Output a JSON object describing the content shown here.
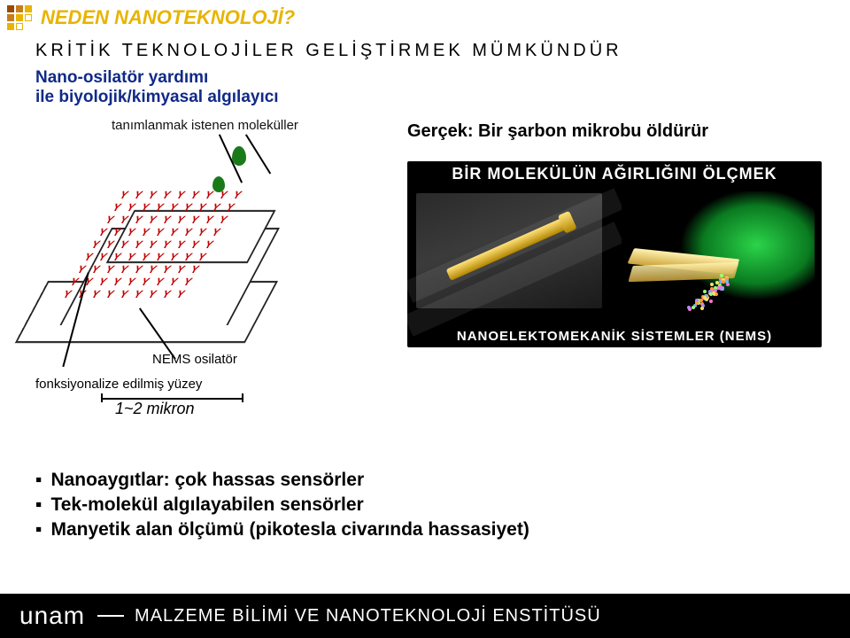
{
  "colors": {
    "accent_yellow": "#e8b400",
    "heading_blue": "#102a87",
    "antibody_red": "#c00000",
    "molecule_green": "#1a7a1a",
    "footer_bg": "#000000",
    "footer_text": "#ffffff",
    "title_block_a": "#9a4a00",
    "title_block_b": "#c77d1e",
    "title_block_c": "#e8b400"
  },
  "title": "NEDEN NANOTEKNOLOJİ?",
  "subtitle": "KRİTİK TEKNOLOJİLER GELİŞTİRMEK MÜMKÜNDÜR",
  "left": {
    "heading1": "Nano-osilatör yardımı",
    "heading2": "ile biyolojik/kimyasal algılayıcı",
    "molecule_label": "tanımlanmak istenen moleküller",
    "nems_label": "NEMS osilatör",
    "functional_label": "fonksiyonalize edilmiş yüzey",
    "scale_label": "1~2 mikron"
  },
  "right": {
    "headline": "Gerçek: Bir şarbon mikrobu öldürür",
    "box_title": "BİR MOLEKÜLÜN AĞIRLIĞINI ÖLÇMEK",
    "box_caption": "NANOELEKTOMEKANİK SİSTEMLER (NEMS)"
  },
  "bullets": [
    "Nanoaygıtlar: çok hassas sensörler",
    "Tek-molekül algılayabilen sensörler",
    "Manyetik alan ölçümü (pikotesla civarında hassasiyet)"
  ],
  "footer": {
    "logo": "unam",
    "institute": "MALZEME BİLİMİ VE NANOTEKNOLOJİ ENSTİTÜSÜ"
  }
}
